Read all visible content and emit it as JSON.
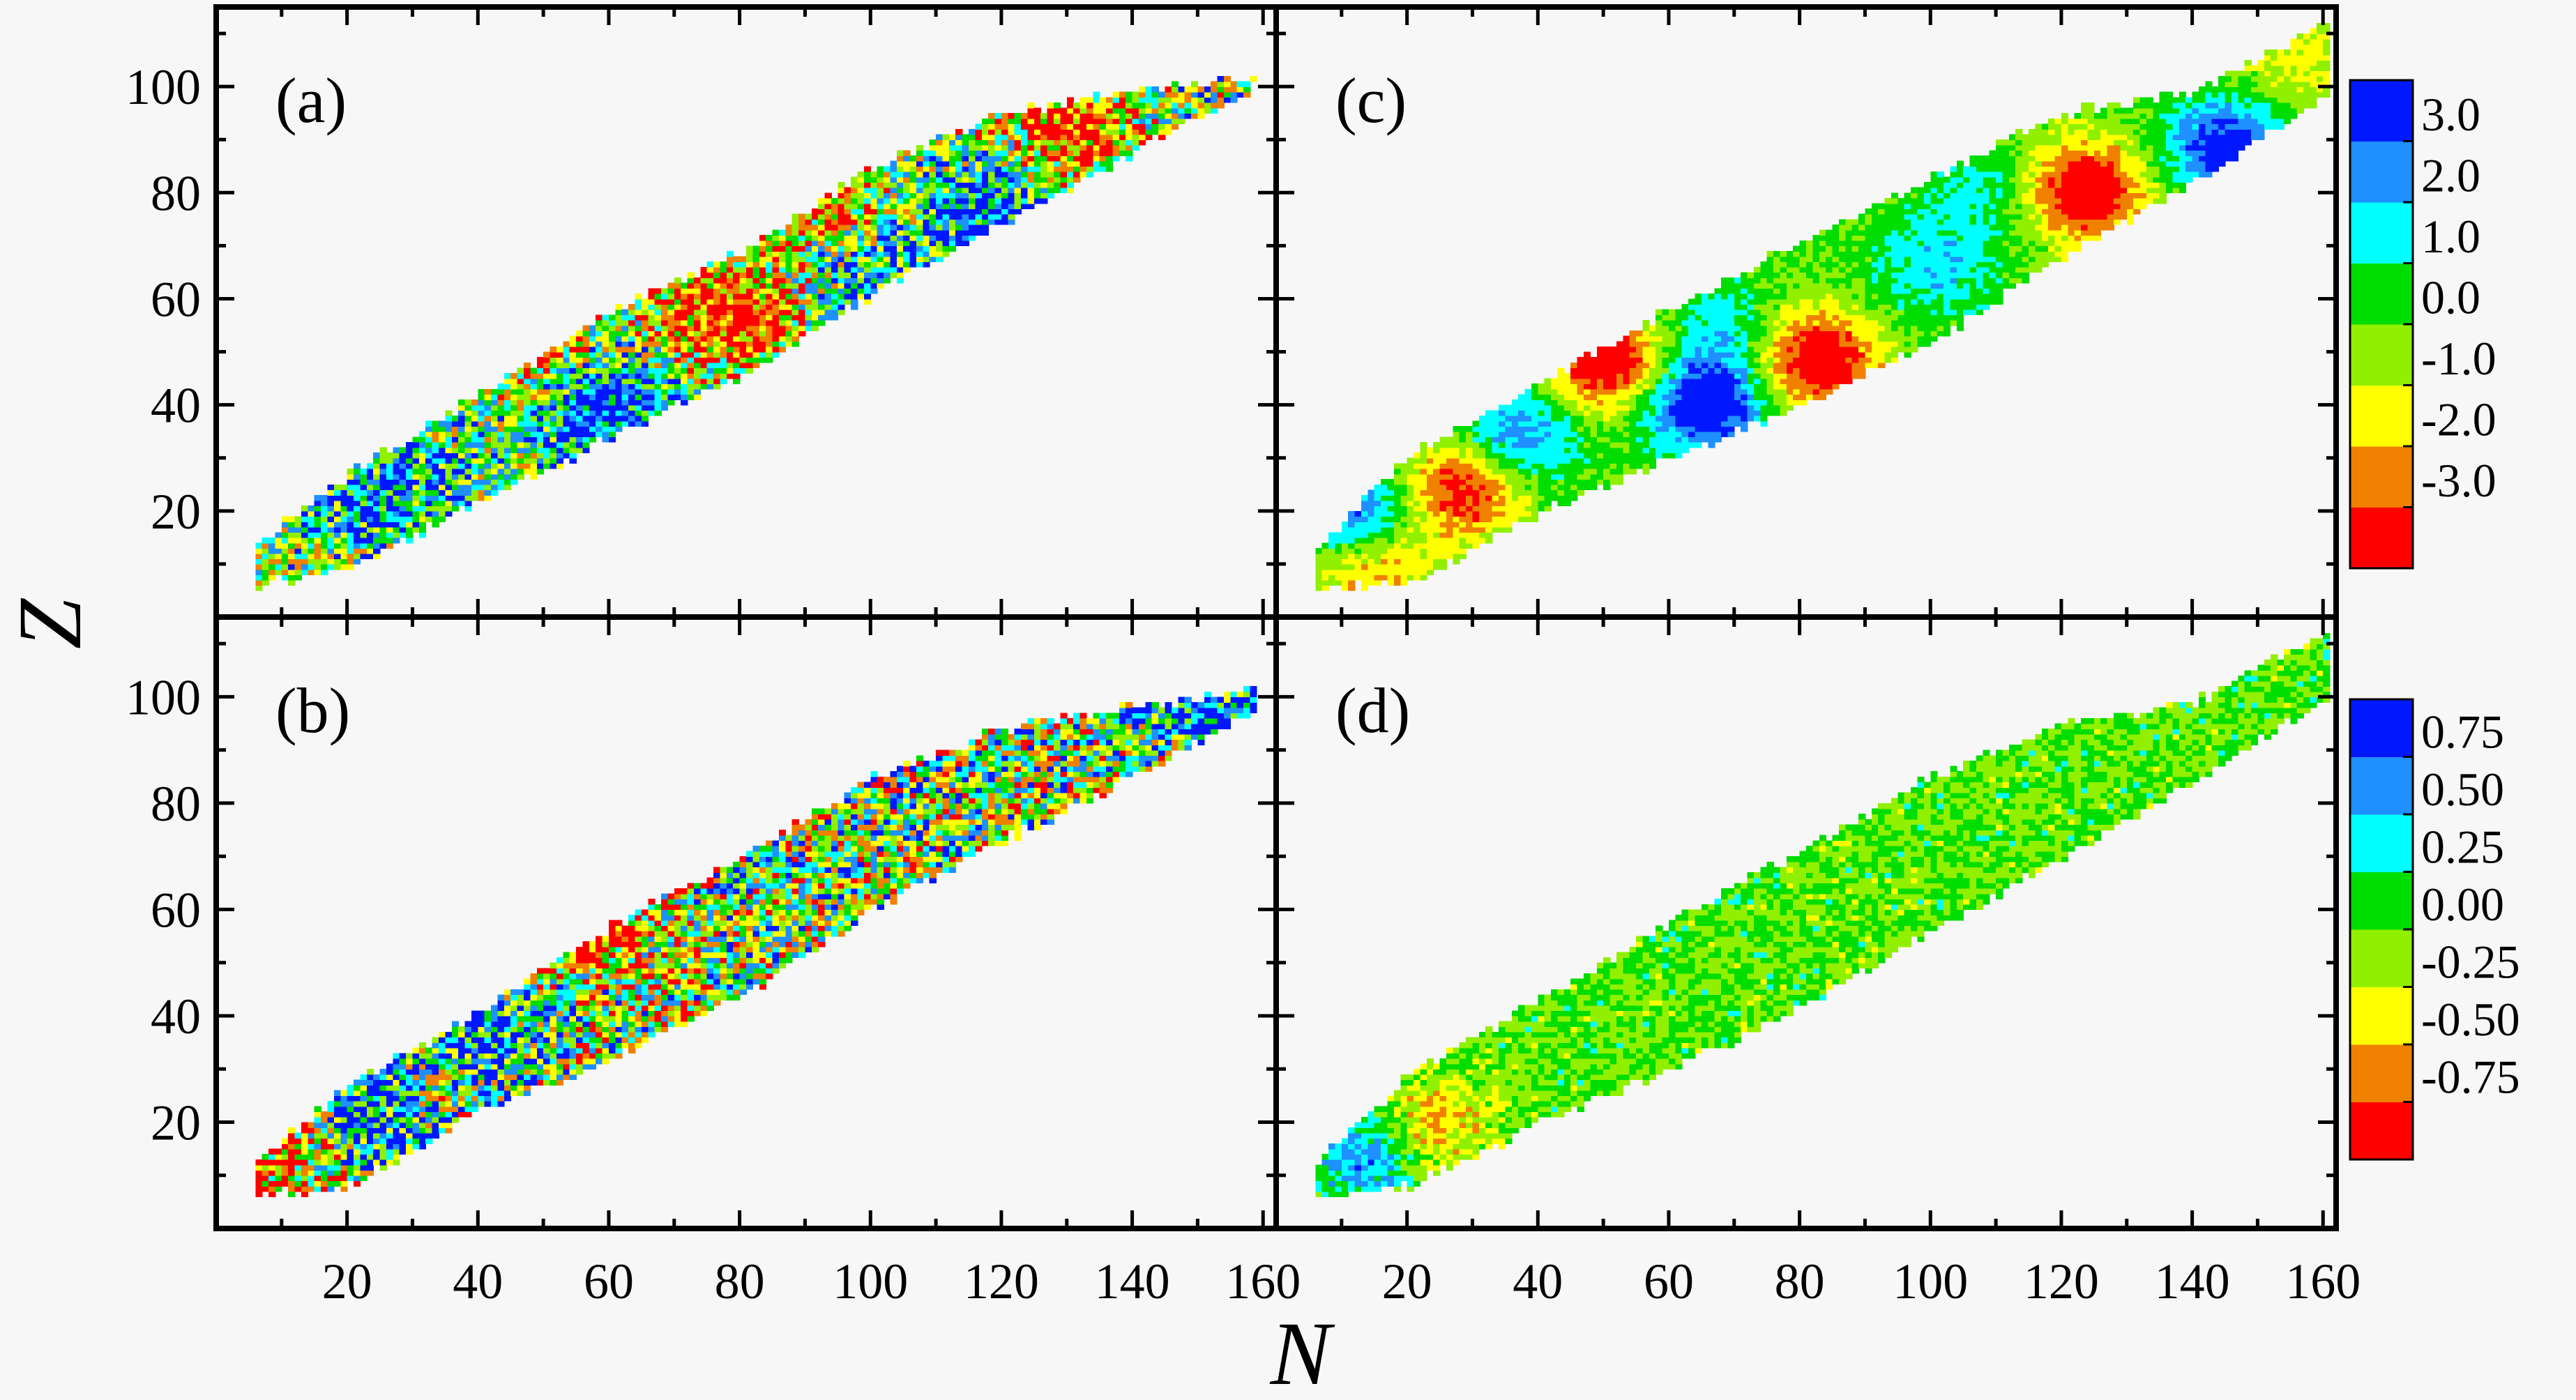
{
  "figure": {
    "xlabel": "N",
    "ylabel": "Z"
  },
  "chart_data": [
    {
      "panel": "(a)",
      "type": "heatmap",
      "xlim": [
        0,
        162
      ],
      "ylim": [
        0,
        115
      ],
      "xticks": [],
      "yticks": [
        "20",
        "40",
        "60",
        "80",
        "100"
      ],
      "colorbar": "top",
      "range": {
        "n_min": 6,
        "n_max": 158,
        "z_low": [
          [
            6,
            6
          ],
          [
            20,
            9
          ],
          [
            40,
            22
          ],
          [
            60,
            34
          ],
          [
            80,
            46
          ],
          [
            100,
            61
          ],
          [
            120,
            74
          ],
          [
            140,
            88
          ],
          [
            158,
            100
          ]
        ],
        "z_high": [
          [
            6,
            13
          ],
          [
            20,
            26
          ],
          [
            40,
            41
          ],
          [
            60,
            57
          ],
          [
            80,
            68
          ],
          [
            100,
            84
          ],
          [
            120,
            94
          ],
          [
            140,
            98
          ],
          [
            158,
            101
          ]
        ]
      },
      "features": [
        {
          "n": 130,
          "z": 91,
          "value": -3.5
        },
        {
          "n": 90,
          "z": 80,
          "value": -3.3
        },
        {
          "n": 80,
          "z": 56,
          "value": -3.5
        },
        {
          "n": 50,
          "z": 50,
          "value": -3.2
        },
        {
          "n": 100,
          "z": 62,
          "value": 2.0
        },
        {
          "n": 118,
          "z": 76,
          "value": 3.2
        },
        {
          "n": 58,
          "z": 38,
          "value": 3.2
        },
        {
          "n": 58,
          "z": 45,
          "value": 1.8
        },
        {
          "n": 30,
          "z": 25,
          "value": 1.5
        },
        {
          "n": 20,
          "z": 20,
          "value": 1.5
        },
        {
          "n": 70,
          "z": 57,
          "value": -1.5
        },
        {
          "n": 145,
          "z": 97,
          "value": 0.2
        }
      ],
      "amplitude": 3.6,
      "noise": 0.9,
      "seed": 11
    },
    {
      "panel": "(c)",
      "type": "heatmap",
      "xlim": [
        0,
        162
      ],
      "ylim": [
        0,
        115
      ],
      "xticks": [],
      "yticks": [],
      "colorbar": "top",
      "range": {
        "n_min": 6,
        "n_max": 160,
        "z_low": [
          [
            6,
            6
          ],
          [
            20,
            6
          ],
          [
            40,
            20
          ],
          [
            60,
            30
          ],
          [
            80,
            40
          ],
          [
            100,
            52
          ],
          [
            120,
            68
          ],
          [
            140,
            82
          ],
          [
            160,
            98
          ]
        ],
        "z_high": [
          [
            6,
            12
          ],
          [
            20,
            30
          ],
          [
            40,
            43
          ],
          [
            60,
            57
          ],
          [
            80,
            70
          ],
          [
            100,
            82
          ],
          [
            120,
            94
          ],
          [
            140,
            98
          ],
          [
            160,
            111
          ]
        ]
      },
      "features": [
        {
          "n": 123,
          "z": 80,
          "value": -4.5
        },
        {
          "n": 82,
          "z": 48,
          "value": -4.5
        },
        {
          "n": 50,
          "z": 48,
          "value": -4.5
        },
        {
          "n": 28,
          "z": 24,
          "value": -4.0
        },
        {
          "n": 14,
          "z": 10,
          "value": -3.2
        },
        {
          "n": 65,
          "z": 40,
          "value": 4.5
        },
        {
          "n": 100,
          "z": 65,
          "value": 1.8
        },
        {
          "n": 36,
          "z": 34,
          "value": 3.0
        },
        {
          "n": 12,
          "z": 18,
          "value": 4.0
        },
        {
          "n": 145,
          "z": 88,
          "value": 4.0
        },
        {
          "n": 68,
          "z": 54,
          "value": 1.6
        },
        {
          "n": 155,
          "z": 104,
          "value": -1.5
        },
        {
          "n": 108,
          "z": 80,
          "value": 1.5
        }
      ],
      "amplitude": 4.0,
      "noise": 0.15,
      "seed": 23
    },
    {
      "panel": "(b)",
      "type": "heatmap",
      "xlim": [
        0,
        162
      ],
      "ylim": [
        0,
        115
      ],
      "xticks": [
        "20",
        "40",
        "60",
        "80",
        "100",
        "120",
        "140",
        "160"
      ],
      "yticks": [
        "20",
        "40",
        "60",
        "80",
        "100"
      ],
      "colorbar": "bottom",
      "range": {
        "n_min": 6,
        "n_max": 158,
        "z_low": [
          [
            6,
            6
          ],
          [
            20,
            8
          ],
          [
            40,
            22
          ],
          [
            60,
            32
          ],
          [
            80,
            44
          ],
          [
            100,
            60
          ],
          [
            120,
            73
          ],
          [
            140,
            85
          ],
          [
            158,
            97
          ]
        ],
        "z_high": [
          [
            6,
            12
          ],
          [
            20,
            26
          ],
          [
            40,
            40
          ],
          [
            60,
            56
          ],
          [
            80,
            69
          ],
          [
            100,
            84
          ],
          [
            120,
            93
          ],
          [
            140,
            97
          ],
          [
            158,
            101
          ]
        ]
      },
      "features": [
        {
          "n": 12,
          "z": 15,
          "value": -0.9
        },
        {
          "n": 20,
          "z": 20,
          "value": 0.9
        },
        {
          "n": 57,
          "z": 56,
          "value": -0.9
        },
        {
          "n": 150,
          "z": 98,
          "value": 0.8
        },
        {
          "n": 40,
          "z": 36,
          "value": 0.6
        }
      ],
      "amplitude": 1.0,
      "noise": 0.95,
      "seed": 37
    },
    {
      "panel": "(d)",
      "type": "heatmap",
      "xlim": [
        0,
        162
      ],
      "ylim": [
        0,
        115
      ],
      "xticks": [
        "20",
        "40",
        "60",
        "80",
        "100",
        "120",
        "140",
        "160"
      ],
      "yticks": [],
      "colorbar": "bottom",
      "range": {
        "n_min": 6,
        "n_max": 160,
        "z_low": [
          [
            6,
            6
          ],
          [
            20,
            8
          ],
          [
            40,
            20
          ],
          [
            60,
            30
          ],
          [
            80,
            42
          ],
          [
            100,
            56
          ],
          [
            120,
            70
          ],
          [
            140,
            84
          ],
          [
            160,
            100
          ]
        ],
        "z_high": [
          [
            6,
            12
          ],
          [
            20,
            28
          ],
          [
            40,
            42
          ],
          [
            60,
            57
          ],
          [
            80,
            70
          ],
          [
            100,
            84
          ],
          [
            120,
            94
          ],
          [
            140,
            98
          ],
          [
            160,
            111
          ]
        ]
      },
      "features": [
        {
          "n": 14,
          "z": 14,
          "value": 0.8
        },
        {
          "n": 22,
          "z": 18,
          "value": -0.7
        }
      ],
      "amplitude": 0.6,
      "noise": 0.45,
      "seed": 53
    }
  ],
  "colorbars": {
    "top": {
      "labels": [
        "3.0",
        "2.0",
        "1.0",
        "0.0",
        "-1.0",
        "-2.0",
        "-3.0"
      ],
      "range": [
        -4.0,
        4.0
      ]
    },
    "bottom": {
      "labels": [
        "0.75",
        "0.50",
        "0.25",
        "0.00",
        "-0.25",
        "-0.50",
        "-0.75"
      ],
      "range": [
        -1.0,
        1.0
      ]
    }
  },
  "palette": [
    "#ff0000",
    "#f08000",
    "#ffff00",
    "#90f000",
    "#00dd00",
    "#00ffff",
    "#1e90ff",
    "#0018ff"
  ]
}
